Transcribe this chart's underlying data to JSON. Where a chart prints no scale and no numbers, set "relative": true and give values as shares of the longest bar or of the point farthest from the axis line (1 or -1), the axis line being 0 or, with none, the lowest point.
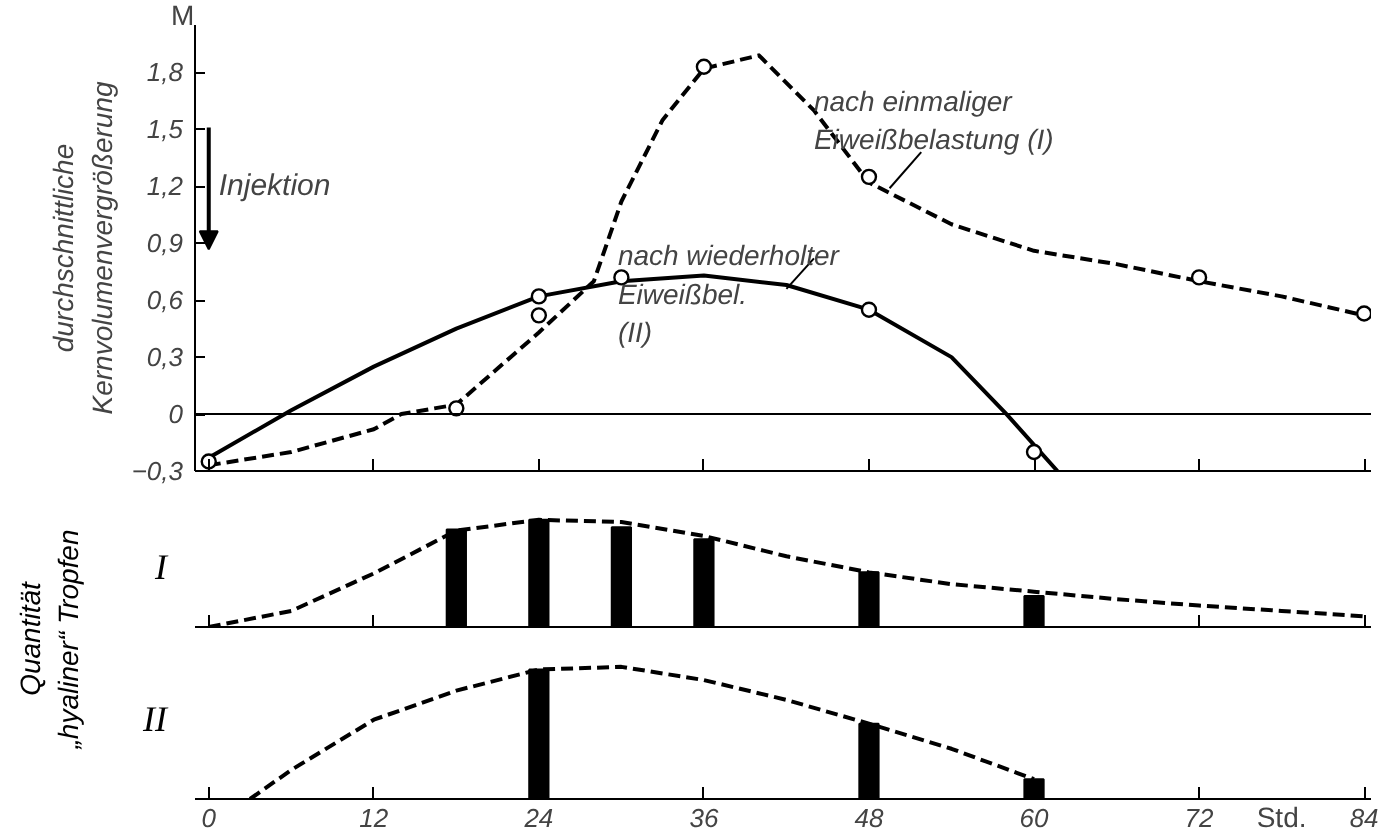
{
  "chart_data": [
    {
      "type": "line",
      "ylabel": "durchschnittliche\nKernvolumenvergrößerung",
      "annotations": [
        "M",
        "Injektion"
      ],
      "xlim": [
        -1,
        84.5
      ],
      "xticks": [
        0,
        12,
        24,
        36,
        48,
        60,
        72,
        84
      ],
      "ylim": [
        -0.3,
        2.05
      ],
      "yticks": [
        {
          "value": -0.3,
          "label": "−0,3"
        },
        {
          "value": 0,
          "label": "0"
        },
        {
          "value": 0.3,
          "label": "0,3"
        },
        {
          "value": 0.6,
          "label": "0,6"
        },
        {
          "value": 0.9,
          "label": "0,9"
        },
        {
          "value": 1.2,
          "label": "1,2"
        },
        {
          "value": 1.5,
          "label": "1,5"
        },
        {
          "value": 1.8,
          "label": "1,8"
        }
      ],
      "tick_labels": "y",
      "grid": false,
      "ref_lines": [
        {
          "axis": "y",
          "value": 0,
          "label": null
        }
      ],
      "series": [
        {
          "name": "nach einmaliger\nEiweißbelastung (I)",
          "color": "#000000",
          "line_style": "dashed",
          "x": [
            0,
            6,
            12,
            14,
            18,
            24,
            28,
            30,
            33,
            36,
            40,
            44,
            48,
            54,
            60,
            66,
            72,
            78,
            84
          ],
          "values": [
            -0.27,
            -0.2,
            -0.08,
            0,
            0.05,
            0.43,
            0.7,
            1.12,
            1.55,
            1.82,
            1.89,
            1.6,
            1.22,
            1.0,
            0.86,
            0.79,
            0.7,
            0.62,
            0.52
          ]
        },
        {
          "name": "nach wiederholter\nEiweißbel.\n(II)",
          "color": "#000000",
          "line_style": "solid",
          "x": [
            0,
            6,
            12,
            18,
            24,
            30,
            36,
            42,
            48,
            54,
            58,
            61.7
          ],
          "values": [
            -0.23,
            0.02,
            0.25,
            0.45,
            0.62,
            0.7,
            0.73,
            0.68,
            0.55,
            0.3,
            0,
            -0.3
          ]
        },
        {
          "type": "scatter",
          "marker": "circle",
          "color": "#000000",
          "x": [
            0,
            18,
            24,
            24,
            30,
            36,
            48,
            48,
            60,
            72,
            84
          ],
          "values": [
            -0.25,
            0.03,
            0.62,
            0.52,
            0.72,
            1.83,
            1.25,
            0.55,
            -0.2,
            0.72,
            0.53
          ]
        }
      ]
    },
    {
      "type": "bar",
      "title": "I",
      "ylabel": "Quantität\n„hyaliner“ Tropfen",
      "relative": true,
      "xlim": [
        -1,
        84.5
      ],
      "xticks": [
        0,
        12,
        24,
        36,
        48,
        60,
        72,
        84
      ],
      "tick_labels": false,
      "grid": false,
      "series": [
        {
          "color": "#000000",
          "x": [
            18,
            24,
            30,
            36,
            48,
            60
          ],
          "values": [
            0.91,
            1,
            0.93,
            0.82,
            0.51,
            0.29
          ]
        },
        {
          "type": "line",
          "line_style": "dashed",
          "color": "#000000",
          "x": [
            0,
            6,
            12,
            18,
            24,
            30,
            36,
            42,
            48,
            54,
            60,
            66,
            72,
            78,
            84
          ],
          "values": [
            0,
            0.15,
            0.5,
            0.9,
            1.0,
            0.98,
            0.85,
            0.66,
            0.51,
            0.4,
            0.33,
            0.26,
            0.2,
            0.15,
            0.1
          ]
        }
      ]
    },
    {
      "type": "bar",
      "title": "II",
      "xlabel": "Std.",
      "relative": true,
      "xlim": [
        -1,
        84.5
      ],
      "xticks": [
        0,
        12,
        24,
        36,
        48,
        60,
        72,
        84
      ],
      "tick_labels": "x",
      "grid": false,
      "series": [
        {
          "color": "#000000",
          "x": [
            24,
            48,
            60
          ],
          "values": [
            0.98,
            0.57,
            0.15
          ]
        },
        {
          "type": "line",
          "line_style": "dashed",
          "color": "#000000",
          "x": [
            3,
            6,
            12,
            18,
            24,
            30,
            36,
            42,
            48,
            54,
            60
          ],
          "values": [
            0,
            0.22,
            0.6,
            0.82,
            0.98,
            1.0,
            0.9,
            0.75,
            0.57,
            0.38,
            0.15
          ]
        }
      ]
    }
  ]
}
